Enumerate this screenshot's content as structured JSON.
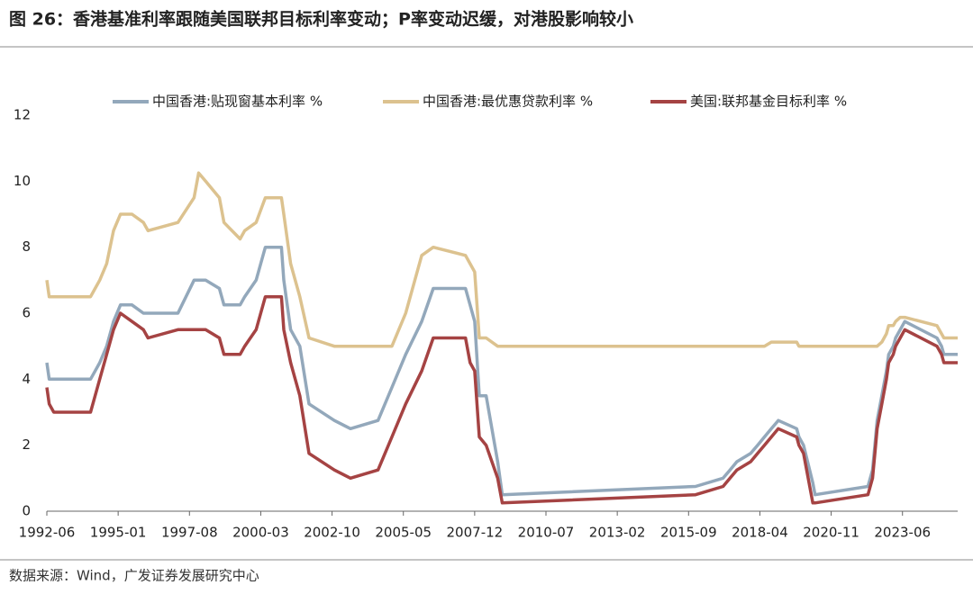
{
  "chart_data": {
    "type": "line",
    "title": "图 26：香港基准利率跟随美国联邦目标利率变动；P率变动迟缓，对港股影响较小",
    "source": "数据来源：Wind，广发证券发展研究中心",
    "x": [
      "1992-06",
      "1992-07",
      "1992-09",
      "1994-01",
      "1994-03",
      "1994-05",
      "1994-08",
      "1994-11",
      "1995-02",
      "1995-07",
      "1995-12",
      "1996-02",
      "1997-03",
      "1997-10",
      "1997-12",
      "1998-03",
      "1998-09",
      "1998-11",
      "1999-06",
      "1999-08",
      "2000-01",
      "2000-05",
      "2000-12",
      "2001-01",
      "2001-04",
      "2001-08",
      "2001-12",
      "2002-11",
      "2003-06",
      "2004-06",
      "2004-12",
      "2005-06",
      "2006-01",
      "2006-06",
      "2007-08",
      "2007-10",
      "2007-12",
      "2008-02",
      "2008-05",
      "2008-10",
      "2008-12",
      "2015-12",
      "2016-12",
      "2017-03",
      "2017-06",
      "2017-12",
      "2018-03",
      "2018-06",
      "2018-09",
      "2018-12",
      "2019-08",
      "2019-09",
      "2019-11",
      "2020-03",
      "2020-04",
      "2022-03",
      "2022-05",
      "2022-06",
      "2022-07",
      "2022-09",
      "2022-11",
      "2022-12",
      "2023-02",
      "2023-03",
      "2023-05",
      "2023-07",
      "2024-09",
      "2024-11",
      "2024-12",
      "2025-06"
    ],
    "series": [
      {
        "name": "中国香港:贴现窗基本利率 %",
        "color": "#93a8bb",
        "values": [
          4.5,
          4.0,
          4.0,
          4.0,
          4.25,
          4.5,
          5.0,
          5.75,
          6.25,
          6.25,
          6.0,
          6.0,
          6.0,
          7.0,
          7.0,
          7.0,
          6.75,
          6.25,
          6.25,
          6.5,
          7.0,
          8.0,
          8.0,
          7.0,
          5.5,
          5.0,
          3.25,
          2.75,
          2.5,
          2.75,
          3.75,
          4.75,
          5.75,
          6.75,
          6.75,
          6.25,
          5.75,
          3.5,
          3.5,
          1.5,
          0.5,
          0.75,
          1.0,
          1.25,
          1.5,
          1.75,
          2.0,
          2.25,
          2.5,
          2.75,
          2.5,
          2.25,
          2.0,
          0.86,
          0.5,
          0.75,
          1.25,
          2.0,
          2.75,
          3.5,
          4.25,
          4.75,
          5.0,
          5.25,
          5.5,
          5.75,
          5.25,
          5.0,
          4.75,
          4.75
        ]
      },
      {
        "name": "中国香港:最优惠贷款利率 %",
        "color": "#dcc28f",
        "values": [
          7.0,
          6.5,
          6.5,
          6.5,
          6.75,
          7.0,
          7.5,
          8.5,
          9.0,
          9.0,
          8.75,
          8.5,
          8.75,
          9.5,
          10.25,
          10.0,
          9.5,
          8.75,
          8.25,
          8.5,
          8.75,
          9.5,
          9.5,
          9.0,
          7.5,
          6.5,
          5.25,
          5.0,
          5.0,
          5.0,
          5.0,
          6.0,
          7.75,
          8.0,
          7.75,
          7.5,
          7.25,
          5.25,
          5.25,
          5.0,
          5.0,
          5.0,
          5.0,
          5.0,
          5.0,
          5.0,
          5.0,
          5.0,
          5.125,
          5.125,
          5.125,
          5.0,
          5.0,
          5.0,
          5.0,
          5.0,
          5.0,
          5.0,
          5.0,
          5.125,
          5.375,
          5.625,
          5.625,
          5.75,
          5.875,
          5.875,
          5.625,
          5.375,
          5.25,
          5.25
        ]
      },
      {
        "name": "美国:联邦基金目标利率  %",
        "color": "#a54343",
        "values": [
          3.75,
          3.25,
          3.0,
          3.0,
          3.5,
          4.0,
          4.75,
          5.5,
          6.0,
          5.75,
          5.5,
          5.25,
          5.5,
          5.5,
          5.5,
          5.5,
          5.25,
          4.75,
          4.75,
          5.0,
          5.5,
          6.5,
          6.5,
          5.5,
          4.5,
          3.5,
          1.75,
          1.25,
          1.0,
          1.25,
          2.25,
          3.25,
          4.25,
          5.25,
          5.25,
          4.5,
          4.25,
          2.25,
          2.0,
          1.0,
          0.25,
          0.5,
          0.75,
          1.0,
          1.25,
          1.5,
          1.75,
          2.0,
          2.25,
          2.5,
          2.25,
          2.0,
          1.75,
          0.25,
          0.25,
          0.5,
          1.0,
          1.75,
          2.5,
          3.25,
          4.0,
          4.5,
          4.75,
          5.0,
          5.25,
          5.5,
          5.0,
          4.75,
          4.5,
          4.5
        ]
      }
    ],
    "xlim": [
      "1992-06",
      "2025-06"
    ],
    "xticks": [
      "1992-06",
      "1995-01",
      "1997-08",
      "2000-03",
      "2002-10",
      "2005-05",
      "2007-12",
      "2010-07",
      "2013-02",
      "2015-09",
      "2018-04",
      "2020-11",
      "2023-06"
    ],
    "ylim": [
      0,
      12
    ],
    "yticks": [
      0,
      2,
      4,
      6,
      8,
      10,
      12
    ],
    "grid": false,
    "legend": "top"
  }
}
